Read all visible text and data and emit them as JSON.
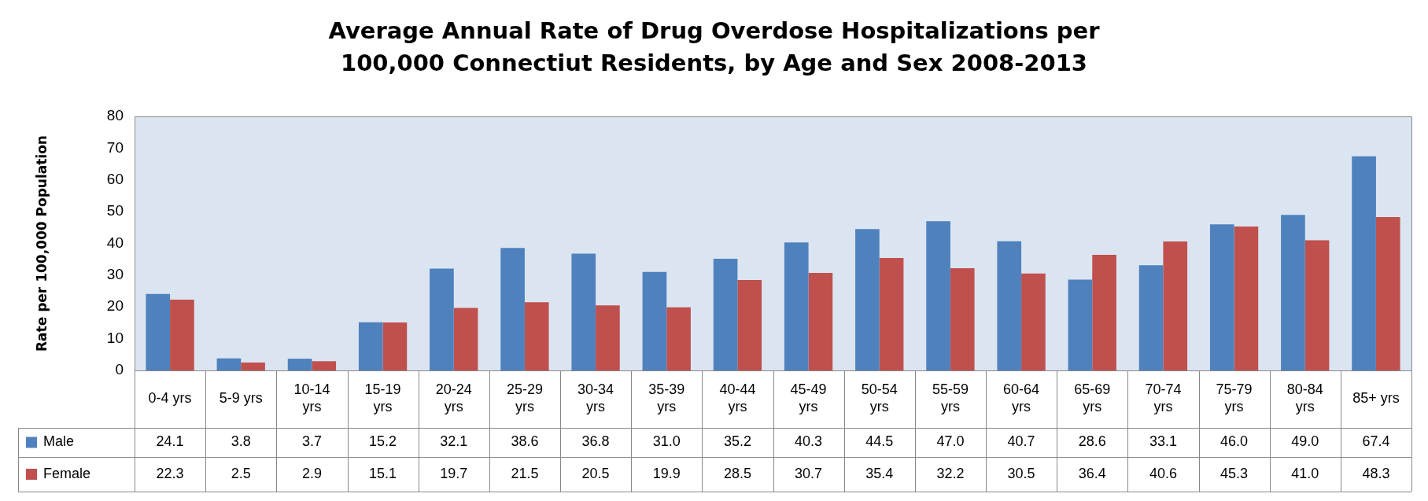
{
  "chart_data": {
    "type": "bar",
    "title": "Average Annual Rate of Drug Overdose Hospitalizations per 100,000 Connectiut Residents, by Age and Sex 2008-2013",
    "ylabel": "Rate per 100,000 Population",
    "categories": [
      "0-4 yrs",
      "5-9 yrs",
      "10-14 yrs",
      "15-19 yrs",
      "20-24 yrs",
      "25-29 yrs",
      "30-34 yrs",
      "35-39 yrs",
      "40-44 yrs",
      "45-49 yrs",
      "50-54 yrs",
      "55-59 yrs",
      "60-64 yrs",
      "65-69 yrs",
      "70-74 yrs",
      "75-79 yrs",
      "80-84 yrs",
      "85+ yrs"
    ],
    "series": [
      {
        "name": "Male",
        "color": "#4f81bd",
        "values": [
          24.1,
          3.8,
          3.7,
          15.2,
          32.1,
          38.6,
          36.8,
          31.0,
          35.2,
          40.3,
          44.5,
          47.0,
          40.7,
          28.6,
          33.1,
          46.0,
          49.0,
          67.4
        ],
        "value_labels": [
          "24.1",
          "3.8",
          "3.7",
          "15.2",
          "32.1",
          "38.6",
          "36.8",
          "31.0",
          "35.2",
          "40.3",
          "44.5",
          "47.0",
          "40.7",
          "28.6",
          "33.1",
          "46.0",
          "49.0",
          "67.4"
        ]
      },
      {
        "name": "Female",
        "color": "#c0504d",
        "values": [
          22.3,
          2.5,
          2.9,
          15.1,
          19.7,
          21.5,
          20.5,
          19.9,
          28.5,
          30.7,
          35.4,
          32.2,
          30.5,
          36.4,
          40.6,
          45.3,
          41.0,
          48.3
        ],
        "value_labels": [
          "22.3",
          "2.5",
          "2.9",
          "15.1",
          "19.7",
          "21.5",
          "20.5",
          "19.9",
          "28.5",
          "30.7",
          "35.4",
          "32.2",
          "30.5",
          "36.4",
          "40.6",
          "45.3",
          "41.0",
          "48.3"
        ]
      }
    ],
    "ylim": [
      0,
      80
    ],
    "yticks": [
      0,
      10,
      20,
      30,
      40,
      50,
      60,
      70,
      80
    ],
    "legend": "bottom left"
  }
}
